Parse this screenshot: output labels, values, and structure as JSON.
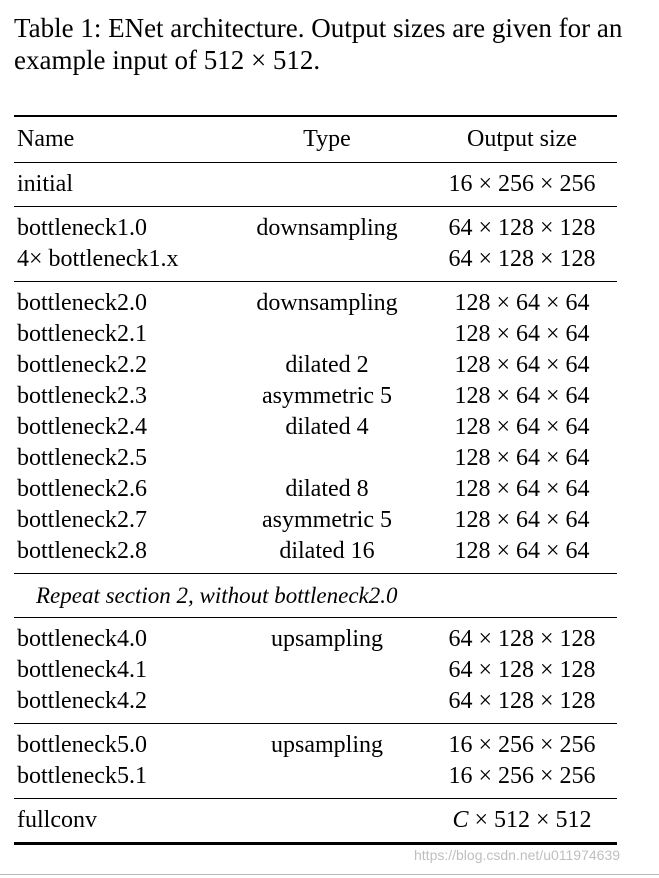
{
  "caption": "Table 1: ENet architecture. Output sizes are given for an example input of 512 × 512.",
  "header": {
    "name": "Name",
    "type": "Type",
    "output": "Output size"
  },
  "sections": [
    {
      "rows": [
        {
          "name": "initial",
          "type": "",
          "output": "16 × 256 × 256"
        }
      ]
    },
    {
      "rows": [
        {
          "name": "bottleneck1.0",
          "type": "downsampling",
          "output": "64 × 128 × 128"
        },
        {
          "name": "4× bottleneck1.x",
          "type": "",
          "output": "64 × 128 × 128"
        }
      ]
    },
    {
      "rows": [
        {
          "name": "bottleneck2.0",
          "type": "downsampling",
          "output": "128 × 64 × 64"
        },
        {
          "name": "bottleneck2.1",
          "type": "",
          "output": "128 × 64 × 64"
        },
        {
          "name": "bottleneck2.2",
          "type": "dilated 2",
          "output": "128 × 64 × 64"
        },
        {
          "name": "bottleneck2.3",
          "type": "asymmetric 5",
          "output": "128 × 64 × 64"
        },
        {
          "name": "bottleneck2.4",
          "type": "dilated 4",
          "output": "128 × 64 × 64"
        },
        {
          "name": "bottleneck2.5",
          "type": "",
          "output": "128 × 64 × 64"
        },
        {
          "name": "bottleneck2.6",
          "type": "dilated 8",
          "output": "128 × 64 × 64"
        },
        {
          "name": "bottleneck2.7",
          "type": "asymmetric 5",
          "output": "128 × 64 × 64"
        },
        {
          "name": "bottleneck2.8",
          "type": "dilated 16",
          "output": "128 × 64 × 64"
        }
      ]
    },
    {
      "note": "Repeat section 2, without bottleneck2.0"
    },
    {
      "rows": [
        {
          "name": "bottleneck4.0",
          "type": "upsampling",
          "output": "64 × 128 × 128"
        },
        {
          "name": "bottleneck4.1",
          "type": "",
          "output": "64 × 128 × 128"
        },
        {
          "name": "bottleneck4.2",
          "type": "",
          "output": "64 × 128 × 128"
        }
      ]
    },
    {
      "rows": [
        {
          "name": "bottleneck5.0",
          "type": "upsampling",
          "output": "16 × 256 × 256"
        },
        {
          "name": "bottleneck5.1",
          "type": "",
          "output": "16 × 256 × 256"
        }
      ]
    },
    {
      "rows": [
        {
          "name": "fullconv",
          "type": "",
          "output": "C × 512 × 512"
        }
      ]
    }
  ],
  "watermark": "https://blog.csdn.net/u011974639"
}
